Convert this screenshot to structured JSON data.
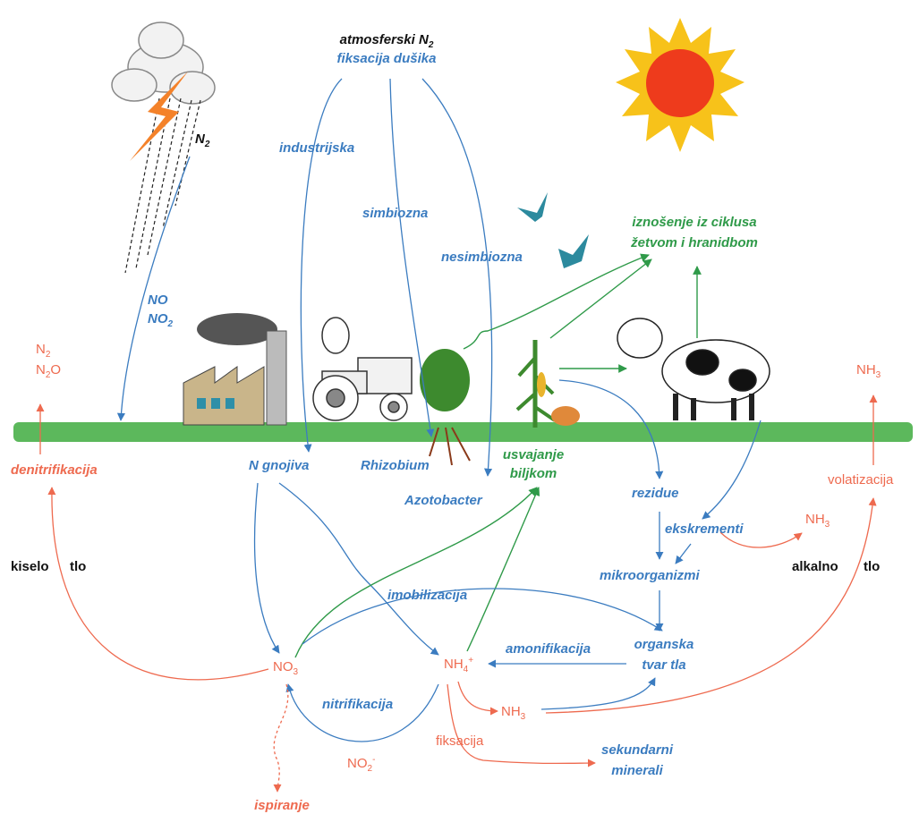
{
  "atmosphere": {
    "label": "atmosferski N",
    "label_sub": "2",
    "fixation": "fiksacija dušika",
    "industrial": "industrijska",
    "symbiotic": "simbiozna",
    "nonsymbiotic": "nesimbiozna"
  },
  "lightning": {
    "n": "N",
    "n_sub": "2",
    "no": "NO",
    "no2": "NO",
    "no2_sub": "2"
  },
  "denitrification": {
    "n2": "N",
    "n2_sub": "2",
    "n2o_a": "N",
    "n2o_sub": "2",
    "n2o_b": "O",
    "label": "denitrifikacija"
  },
  "soil": {
    "acid_1": "kiselo",
    "acid_2": "tlo",
    "alkaline_1": "alkalno",
    "alkaline_2": "tlo",
    "fertilizer": "N gnojiva",
    "rhizobium": "Rhizobium",
    "azotobacter": "Azotobacter"
  },
  "plant_uptake": {
    "line_1": "usvajanje",
    "line_2": "biljkom"
  },
  "removal": {
    "line_1": "iznošenje iz ciklusa",
    "line_2": "žetvom i hranidbom"
  },
  "organic": {
    "residues": "rezidue",
    "excrements": "ekskrementi",
    "microorganisms": "mikroorganizmi",
    "matter_1": "organska",
    "matter_2": "tvar tla"
  },
  "volatilization": {
    "nh3_top": "NH",
    "nh3_top_sub": "3",
    "label": "volatizacija",
    "nh3_mid": "NH",
    "nh3_mid_sub": "3"
  },
  "processes": {
    "immobilization": "imobilizacija",
    "ammonification": "amonifikacija",
    "nitrification": "nitrifikacija",
    "fixation": "fiksacija",
    "minerals_1": "sekundarni",
    "minerals_2": "minerali",
    "leaching": "ispiranje"
  },
  "ions": {
    "no3": "NO",
    "no3_sub": "3",
    "nh4": "NH",
    "nh4_sub": "4",
    "nh4_sup": "+",
    "nh3": "NH",
    "nh3_sub": "3",
    "no2": "NO",
    "no2_sub": "2",
    "no2_sup": "-"
  }
}
